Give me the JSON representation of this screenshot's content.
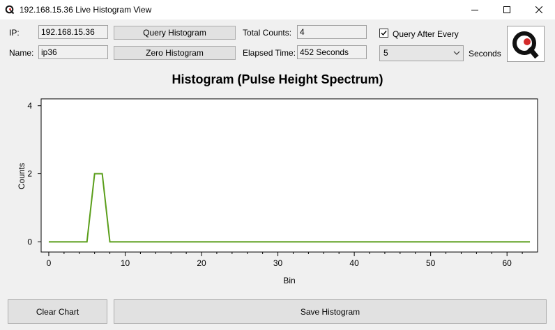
{
  "window": {
    "title": "192.168.15.36 Live Histogram View",
    "controls": [
      "minimize",
      "maximize",
      "close"
    ]
  },
  "device": {
    "ip_label": "IP:",
    "ip_value": "192.168.15.36",
    "name_label": "Name:",
    "name_value": "ip36"
  },
  "buttons": {
    "query": "Query Histogram",
    "zero": "Zero Histogram",
    "clear": "Clear Chart",
    "save": "Save Histogram"
  },
  "stats": {
    "total_counts_label": "Total Counts:",
    "total_counts_value": "4",
    "elapsed_label": "Elapsed Time:",
    "elapsed_value": "452 Seconds"
  },
  "auto_query": {
    "checkbox_label": "Query After Every",
    "checked": true,
    "interval_value": "5",
    "interval_unit": "Seconds"
  },
  "colors": {
    "series_line": "#5a9e1a",
    "logo_red": "#d42b2b",
    "logo_black": "#111111"
  },
  "icons": {
    "app": "q-logo-icon",
    "checkbox": "checkmark-icon",
    "dropdown": "chevron-down-icon"
  },
  "chart_data": {
    "type": "line",
    "title": "Histogram (Pulse Height Spectrum)",
    "xlabel": "Bin",
    "ylabel": "Counts",
    "xlim": [
      -1,
      64
    ],
    "ylim": [
      -0.3,
      4.2
    ],
    "xticks": [
      0,
      10,
      20,
      30,
      40,
      50,
      60
    ],
    "yticks": [
      0,
      2,
      4
    ],
    "grid": false,
    "series": [
      {
        "x": [
          0,
          1,
          2,
          3,
          4,
          5,
          6,
          7,
          8,
          9,
          10,
          11,
          12,
          13,
          14,
          15,
          16,
          17,
          18,
          19,
          20,
          21,
          22,
          23,
          24,
          25,
          26,
          27,
          28,
          29,
          30,
          31,
          32,
          33,
          34,
          35,
          36,
          37,
          38,
          39,
          40,
          41,
          42,
          43,
          44,
          45,
          46,
          47,
          48,
          49,
          50,
          51,
          52,
          53,
          54,
          55,
          56,
          57,
          58,
          59,
          60,
          61,
          62,
          63
        ],
        "values": [
          0,
          0,
          0,
          0,
          0,
          0,
          2,
          2,
          0,
          0,
          0,
          0,
          0,
          0,
          0,
          0,
          0,
          0,
          0,
          0,
          0,
          0,
          0,
          0,
          0,
          0,
          0,
          0,
          0,
          0,
          0,
          0,
          0,
          0,
          0,
          0,
          0,
          0,
          0,
          0,
          0,
          0,
          0,
          0,
          0,
          0,
          0,
          0,
          0,
          0,
          0,
          0,
          0,
          0,
          0,
          0,
          0,
          0,
          0,
          0,
          0,
          0,
          0,
          0
        ]
      }
    ]
  }
}
